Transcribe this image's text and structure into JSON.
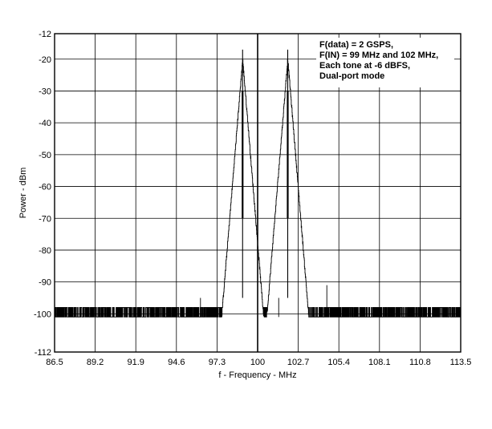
{
  "chart_data": {
    "type": "line",
    "xlabel": "f - Frequency - MHz",
    "ylabel": "Power - dBm",
    "xlim": [
      86.5,
      113.5
    ],
    "ylim": [
      -112,
      -12
    ],
    "x_ticks": [
      "86.5",
      "89.2",
      "91.9",
      "94.6",
      "97.3",
      "100",
      "102.7",
      "105.4",
      "108.1",
      "110.8",
      "113.5"
    ],
    "y_ticks": [
      "-12",
      "-20",
      "-30",
      "-40",
      "-50",
      "-60",
      "-70",
      "-80",
      "-90",
      "-100",
      "-112"
    ],
    "y_tick_values": [
      -12,
      -20,
      -30,
      -40,
      -50,
      -60,
      -70,
      -80,
      -90,
      -100,
      -112
    ],
    "grid": true,
    "legend_placement": "top-right",
    "annotation_lines": [
      "F(data) = 2 GSPS,",
      "F(IN) = 99 MHz and 102 MHz,",
      "Each tone at -6 dBFS,",
      "Dual-port mode"
    ],
    "noise_floor_db": -101,
    "noise_top_db": -98,
    "peaks": [
      {
        "x": 99.0,
        "y": -17
      },
      {
        "x": 102.0,
        "y": -17
      }
    ],
    "spurs": [
      {
        "x": 96.2,
        "y": -95
      },
      {
        "x": 101.4,
        "y": -95
      },
      {
        "x": 104.6,
        "y": -91
      }
    ]
  }
}
